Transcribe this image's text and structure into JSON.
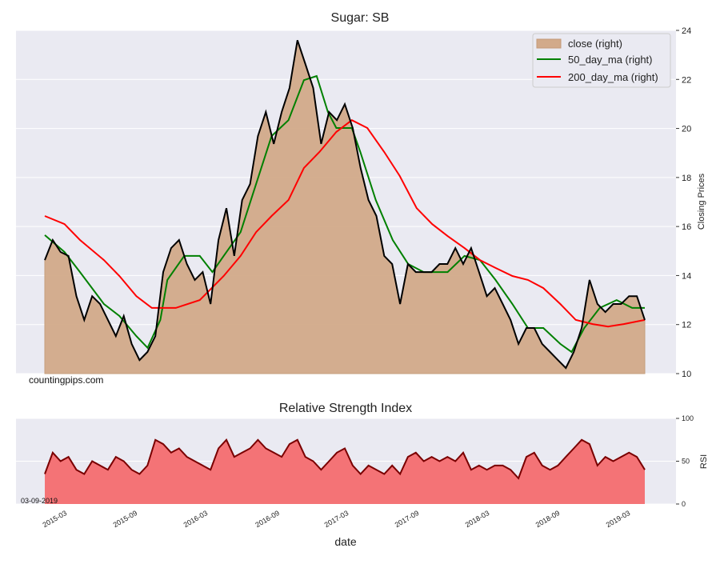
{
  "chart_data": [
    {
      "type": "area",
      "title": "Sugar: SB",
      "ylabel": "Closing Prices",
      "ylim": [
        10,
        24
      ],
      "yticks": [
        10,
        12,
        14,
        16,
        18,
        20,
        22,
        24
      ],
      "y_axis_side": "right",
      "grid": true,
      "legend_position": "top-right",
      "x_range_decimal_year": [
        2015.0,
        2019.26
      ],
      "watermark": "countingpips.com",
      "series": [
        {
          "name": "close (right)",
          "color": "#d2aa8a",
          "line_color": "#000000",
          "values": [
            14.63,
            15.45,
            14.96,
            14.8,
            13.16,
            12.19,
            13.16,
            12.84,
            12.19,
            11.53,
            12.35,
            11.21,
            10.55,
            10.88,
            11.53,
            14.14,
            15.12,
            15.45,
            14.47,
            13.82,
            14.14,
            12.84,
            15.45,
            16.75,
            14.8,
            17.08,
            17.73,
            19.69,
            20.67,
            19.37,
            20.67,
            21.65,
            23.6,
            22.63,
            21.65,
            19.37,
            20.67,
            20.34,
            20.99,
            20.02,
            18.39,
            17.08,
            16.43,
            14.8,
            14.47,
            12.84,
            14.47,
            14.14,
            14.14,
            14.14,
            14.47,
            14.47,
            15.12,
            14.47,
            15.12,
            14.14,
            13.16,
            13.49,
            12.84,
            12.19,
            11.21,
            11.86,
            11.86,
            11.21,
            10.88,
            10.55,
            10.23,
            10.88,
            11.86,
            13.82,
            12.84,
            12.51,
            12.84,
            12.84,
            13.16,
            13.16,
            12.19
          ]
        },
        {
          "name": "50_day_ma (right)",
          "color": "#008000",
          "points": [
            [
              2015.0,
              15.65
            ],
            [
              2015.14,
              14.96
            ],
            [
              2015.25,
              14.14
            ],
            [
              2015.42,
              12.84
            ],
            [
              2015.53,
              12.35
            ],
            [
              2015.65,
              11.53
            ],
            [
              2015.73,
              11.05
            ],
            [
              2015.82,
              12.19
            ],
            [
              2015.87,
              13.82
            ],
            [
              2015.99,
              14.8
            ],
            [
              2016.1,
              14.8
            ],
            [
              2016.19,
              14.14
            ],
            [
              2016.27,
              14.8
            ],
            [
              2016.39,
              15.77
            ],
            [
              2016.5,
              17.73
            ],
            [
              2016.61,
              19.69
            ],
            [
              2016.73,
              20.34
            ],
            [
              2016.84,
              21.97
            ],
            [
              2016.93,
              22.14
            ],
            [
              2017.01,
              20.67
            ],
            [
              2017.07,
              20.02
            ],
            [
              2017.18,
              20.02
            ],
            [
              2017.24,
              19.04
            ],
            [
              2017.35,
              17.08
            ],
            [
              2017.47,
              15.45
            ],
            [
              2017.58,
              14.47
            ],
            [
              2017.69,
              14.14
            ],
            [
              2017.86,
              14.14
            ],
            [
              2017.98,
              14.8
            ],
            [
              2018.09,
              14.63
            ],
            [
              2018.2,
              13.82
            ],
            [
              2018.32,
              12.84
            ],
            [
              2018.43,
              11.86
            ],
            [
              2018.54,
              11.86
            ],
            [
              2018.66,
              11.21
            ],
            [
              2018.74,
              10.88
            ],
            [
              2018.83,
              11.86
            ],
            [
              2018.94,
              12.68
            ],
            [
              2019.06,
              13.0
            ],
            [
              2019.17,
              12.68
            ],
            [
              2019.26,
              12.68
            ]
          ]
        },
        {
          "name": "200_day_ma (right)",
          "color": "#ff0000",
          "points": [
            [
              2015.0,
              16.43
            ],
            [
              2015.14,
              16.1
            ],
            [
              2015.25,
              15.45
            ],
            [
              2015.42,
              14.63
            ],
            [
              2015.53,
              13.98
            ],
            [
              2015.65,
              13.16
            ],
            [
              2015.76,
              12.68
            ],
            [
              2015.93,
              12.68
            ],
            [
              2016.1,
              13.0
            ],
            [
              2016.27,
              13.98
            ],
            [
              2016.39,
              14.8
            ],
            [
              2016.5,
              15.77
            ],
            [
              2016.61,
              16.43
            ],
            [
              2016.73,
              17.08
            ],
            [
              2016.84,
              18.39
            ],
            [
              2016.95,
              19.04
            ],
            [
              2017.07,
              19.86
            ],
            [
              2017.18,
              20.34
            ],
            [
              2017.29,
              20.02
            ],
            [
              2017.41,
              19.04
            ],
            [
              2017.52,
              18.06
            ],
            [
              2017.64,
              16.75
            ],
            [
              2017.75,
              16.1
            ],
            [
              2017.86,
              15.61
            ],
            [
              2017.98,
              15.12
            ],
            [
              2018.09,
              14.63
            ],
            [
              2018.2,
              14.31
            ],
            [
              2018.32,
              13.98
            ],
            [
              2018.43,
              13.82
            ],
            [
              2018.54,
              13.49
            ],
            [
              2018.66,
              12.84
            ],
            [
              2018.77,
              12.19
            ],
            [
              2018.89,
              12.02
            ],
            [
              2019.0,
              11.92
            ],
            [
              2019.11,
              12.02
            ],
            [
              2019.26,
              12.19
            ]
          ]
        }
      ]
    },
    {
      "type": "area",
      "title": "Relative Strength Index",
      "ylabel": "RSI",
      "xlabel": "date",
      "ylim": [
        0,
        100
      ],
      "yticks": [
        0,
        50,
        100
      ],
      "date_annotation": "03-09-2019",
      "x_range_decimal_year": [
        2015.0,
        2019.26
      ],
      "xticks": [
        {
          "label": "2015-03",
          "year": 2015.16
        },
        {
          "label": "2015-09",
          "year": 2015.66
        },
        {
          "label": "2016-03",
          "year": 2016.16
        },
        {
          "label": "2016-09",
          "year": 2016.67
        },
        {
          "label": "2017-03",
          "year": 2017.16
        },
        {
          "label": "2017-09",
          "year": 2017.66
        },
        {
          "label": "2018-03",
          "year": 2018.16
        },
        {
          "label": "2018-09",
          "year": 2018.66
        },
        {
          "label": "2019-03",
          "year": 2019.16
        }
      ],
      "series": [
        {
          "name": "RSI",
          "fill": "#f47376",
          "line_color": "#7a0000",
          "values": [
            35,
            60,
            50,
            55,
            40,
            35,
            50,
            45,
            40,
            55,
            50,
            40,
            35,
            45,
            75,
            70,
            60,
            65,
            55,
            50,
            45,
            40,
            65,
            75,
            55,
            60,
            65,
            75,
            65,
            60,
            55,
            70,
            75,
            55,
            50,
            40,
            50,
            60,
            65,
            45,
            35,
            45,
            40,
            35,
            45,
            35,
            55,
            60,
            50,
            55,
            50,
            55,
            50,
            60,
            40,
            45,
            40,
            45,
            45,
            40,
            30,
            55,
            60,
            45,
            40,
            45,
            55,
            65,
            75,
            70,
            45,
            55,
            50,
            55,
            60,
            55,
            40
          ]
        }
      ]
    }
  ]
}
